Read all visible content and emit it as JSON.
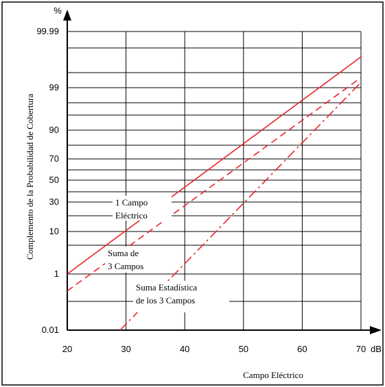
{
  "chart_data": {
    "type": "line",
    "title": "",
    "xlabel": "Campo Eléctrico",
    "ylabel": "Complemento de la Probabilidad de Cobertura",
    "x_unit": "dB",
    "y_unit": "%",
    "xlim": [
      20,
      70
    ],
    "x_ticks": [
      "20",
      "30",
      "40",
      "50",
      "60",
      "70"
    ],
    "y_ticks": [
      "0.01",
      "1",
      "10",
      "30",
      "50",
      "70",
      "90",
      "99",
      "99.99"
    ],
    "y_scale": "probability",
    "grid": true,
    "series_color": "#e8232a",
    "series": [
      {
        "name": "1 Campo Eléctrico",
        "label_lines": [
          "1 Campo",
          "Eléctrico"
        ],
        "style": "solid",
        "x": [
          20,
          70
        ],
        "y": [
          1,
          99.9
        ]
      },
      {
        "name": "Suma de 3 Campos",
        "label_lines": [
          "Suma de",
          "3 Campos"
        ],
        "style": "dashed",
        "x": [
          20,
          70
        ],
        "y": [
          0.3,
          99.5
        ]
      },
      {
        "name": "Suma Estadística de los 3 Campos",
        "label_lines": [
          "Suma Estadística",
          "de los 3 Campos"
        ],
        "style": "dashdot",
        "x": [
          29,
          70
        ],
        "y": [
          0.01,
          99.3
        ]
      }
    ]
  }
}
